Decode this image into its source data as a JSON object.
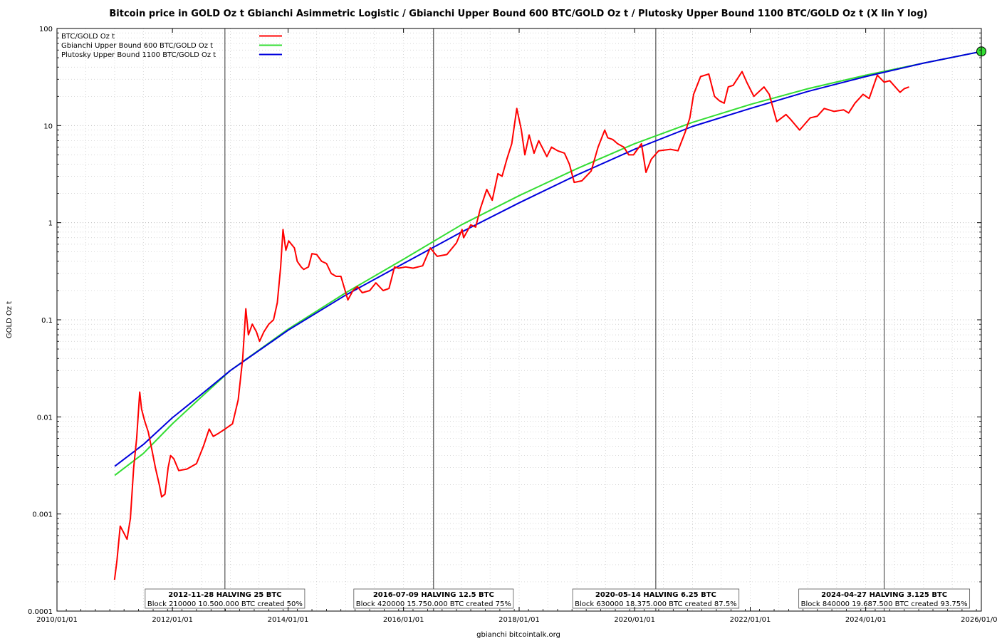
{
  "chart_data": {
    "type": "line",
    "title": "Bitcoin price in GOLD Oz t Gbianchi Asimmetric Logistic / Gbianchi Upper Bound 600  BTC/GOLD Oz t / Plutosky Upper Bound 1100  BTC/GOLD Oz t  (X lin Y log)",
    "xlabel": "gbianchi bitcointalk.org",
    "ylabel": "GOLD Oz t",
    "y_scale": "log",
    "xlim": [
      "2010/01/01",
      "2026/01/01"
    ],
    "ylim": [
      0.0001,
      100
    ],
    "x_ticks": [
      "2010/01/01",
      "2012/01/01",
      "2014/01/01",
      "2016/01/01",
      "2018/01/01",
      "2020/01/01",
      "2022/01/01",
      "2024/01/01",
      "2026/01/01"
    ],
    "y_ticks": [
      "0.0001",
      "0.001",
      "0.01",
      "0.1",
      "1",
      "10",
      "100"
    ],
    "grid": true,
    "legend_position": "top-left",
    "series": [
      {
        "name": "BTC/GOLD Oz t",
        "color": "#ff0000",
        "points": [
          [
            "2010/12/31",
            0.00021
          ],
          [
            "2011/01/15",
            0.00033
          ],
          [
            "2011/02/05",
            0.00075
          ],
          [
            "2011/02/25",
            0.00065
          ],
          [
            "2011/03/20",
            0.00055
          ],
          [
            "2011/04/10",
            0.0009
          ],
          [
            "2011/05/01",
            0.003
          ],
          [
            "2011/05/20",
            0.006
          ],
          [
            "2011/06/08",
            0.018
          ],
          [
            "2011/06/20",
            0.012
          ],
          [
            "2011/07/10",
            0.009
          ],
          [
            "2011/08/01",
            0.007
          ],
          [
            "2011/08/25",
            0.0045
          ],
          [
            "2011/09/15",
            0.003
          ],
          [
            "2011/10/10",
            0.002
          ],
          [
            "2011/10/25",
            0.0015
          ],
          [
            "2011/11/15",
            0.0016
          ],
          [
            "2011/12/05",
            0.003
          ],
          [
            "2011/12/20",
            0.004
          ],
          [
            "2012/01/10",
            0.0037
          ],
          [
            "2012/02/10",
            0.0028
          ],
          [
            "2012/04/01",
            0.0029
          ],
          [
            "2012/06/01",
            0.0033
          ],
          [
            "2012/07/15",
            0.005
          ],
          [
            "2012/08/20",
            0.0075
          ],
          [
            "2012/09/15",
            0.0063
          ],
          [
            "2012/10/20",
            0.0068
          ],
          [
            "2012/11/28",
            0.0075
          ],
          [
            "2013/01/15",
            0.0085
          ],
          [
            "2013/02/20",
            0.015
          ],
          [
            "2013/03/20",
            0.04
          ],
          [
            "2013/04/09",
            0.13
          ],
          [
            "2013/04/25",
            0.07
          ],
          [
            "2013/05/20",
            0.09
          ],
          [
            "2013/06/15",
            0.075
          ],
          [
            "2013/07/05",
            0.06
          ],
          [
            "2013/08/01",
            0.075
          ],
          [
            "2013/09/01",
            0.09
          ],
          [
            "2013/10/01",
            0.1
          ],
          [
            "2013/10/25",
            0.15
          ],
          [
            "2013/11/15",
            0.35
          ],
          [
            "2013/11/30",
            0.85
          ],
          [
            "2013/12/18",
            0.52
          ],
          [
            "2014/01/05",
            0.65
          ],
          [
            "2014/02/10",
            0.55
          ],
          [
            "2014/02/28",
            0.4
          ],
          [
            "2014/03/25",
            0.35
          ],
          [
            "2014/04/10",
            0.33
          ],
          [
            "2014/05/10",
            0.35
          ],
          [
            "2014/06/01",
            0.48
          ],
          [
            "2014/07/01",
            0.47
          ],
          [
            "2014/08/01",
            0.4
          ],
          [
            "2014/09/01",
            0.38
          ],
          [
            "2014/10/01",
            0.3
          ],
          [
            "2014/11/01",
            0.28
          ],
          [
            "2014/12/01",
            0.28
          ],
          [
            "2015/01/14",
            0.16
          ],
          [
            "2015/02/15",
            0.2
          ],
          [
            "2015/03/15",
            0.22
          ],
          [
            "2015/04/15",
            0.19
          ],
          [
            "2015/06/01",
            0.2
          ],
          [
            "2015/07/10",
            0.24
          ],
          [
            "2015/08/25",
            0.2
          ],
          [
            "2015/10/01",
            0.21
          ],
          [
            "2015/11/05",
            0.35
          ],
          [
            "2015/12/01",
            0.34
          ],
          [
            "2016/01/15",
            0.35
          ],
          [
            "2016/03/01",
            0.34
          ],
          [
            "2016/05/01",
            0.36
          ],
          [
            "2016/06/18",
            0.55
          ],
          [
            "2016/07/09",
            0.5
          ],
          [
            "2016/08/01",
            0.45
          ],
          [
            "2016/10/01",
            0.47
          ],
          [
            "2016/12/01",
            0.62
          ],
          [
            "2017/01/05",
            0.85
          ],
          [
            "2017/01/15",
            0.7
          ],
          [
            "2017/03/01",
            0.95
          ],
          [
            "2017/04/01",
            0.9
          ],
          [
            "2017/05/01",
            1.4
          ],
          [
            "2017/06/10",
            2.2
          ],
          [
            "2017/07/15",
            1.7
          ],
          [
            "2017/08/20",
            3.2
          ],
          [
            "2017/09/15",
            3.0
          ],
          [
            "2017/10/15",
            4.5
          ],
          [
            "2017/11/15",
            6.5
          ],
          [
            "2017/12/17",
            15.0
          ],
          [
            "2018/01/15",
            9.0
          ],
          [
            "2018/02/06",
            5.0
          ],
          [
            "2018/03/05",
            8.0
          ],
          [
            "2018/04/05",
            5.2
          ],
          [
            "2018/05/05",
            7.0
          ],
          [
            "2018/06/25",
            4.8
          ],
          [
            "2018/07/25",
            6.0
          ],
          [
            "2018/09/01",
            5.5
          ],
          [
            "2018/10/15",
            5.2
          ],
          [
            "2018/11/15",
            4.0
          ],
          [
            "2018/12/15",
            2.6
          ],
          [
            "2019/02/01",
            2.7
          ],
          [
            "2019/04/01",
            3.4
          ],
          [
            "2019/05/15",
            6.0
          ],
          [
            "2019/06/26",
            9.0
          ],
          [
            "2019/07/15",
            7.5
          ],
          [
            "2019/08/15",
            7.2
          ],
          [
            "2019/09/15",
            6.5
          ],
          [
            "2019/10/25",
            6.0
          ],
          [
            "2019/11/25",
            5.0
          ],
          [
            "2019/12/25",
            5.0
          ],
          [
            "2020/02/13",
            6.5
          ],
          [
            "2020/03/13",
            3.3
          ],
          [
            "2020/04/15",
            4.5
          ],
          [
            "2020/06/01",
            5.5
          ],
          [
            "2020/08/15",
            5.7
          ],
          [
            "2020/10/01",
            5.5
          ],
          [
            "2020/11/15",
            8.5
          ],
          [
            "2020/12/15",
            12.0
          ],
          [
            "2021/01/08",
            21.0
          ],
          [
            "2021/02/21",
            32.0
          ],
          [
            "2021/04/14",
            34.0
          ],
          [
            "2021/05/20",
            20.0
          ],
          [
            "2021/06/20",
            18.0
          ],
          [
            "2021/07/20",
            17.0
          ],
          [
            "2021/08/15",
            25.0
          ],
          [
            "2021/09/15",
            26.0
          ],
          [
            "2021/11/10",
            36.0
          ],
          [
            "2021/12/10",
            28.0
          ],
          [
            "2022/01/24",
            20.0
          ],
          [
            "2022/03/29",
            25.0
          ],
          [
            "2022/05/01",
            21.0
          ],
          [
            "2022/06/18",
            11.0
          ],
          [
            "2022/08/15",
            13.0
          ],
          [
            "2022/09/15",
            11.5
          ],
          [
            "2022/11/09",
            9.0
          ],
          [
            "2023/01/15",
            12.0
          ],
          [
            "2023/03/01",
            12.5
          ],
          [
            "2023/04/14",
            15.0
          ],
          [
            "2023/06/15",
            14.0
          ],
          [
            "2023/08/15",
            14.5
          ],
          [
            "2023/09/15",
            13.5
          ],
          [
            "2023/10/25",
            17.0
          ],
          [
            "2023/12/15",
            21.0
          ],
          [
            "2024/01/23",
            19.0
          ],
          [
            "2024/03/14",
            33.0
          ],
          [
            "2024/04/27",
            28.0
          ],
          [
            "2024/06/01",
            29.0
          ],
          [
            "2024/08/05",
            22.0
          ],
          [
            "2024/09/01",
            24.0
          ],
          [
            "2024/10/01",
            25.0
          ]
        ]
      },
      {
        "name": "Gbianchi Upper Bound 600  BTC/GOLD Oz t",
        "color": "#33dd33",
        "points": [
          [
            "2011/01/01",
            0.0025
          ],
          [
            "2011/07/01",
            0.0042
          ],
          [
            "2012/01/01",
            0.0085
          ],
          [
            "2012/07/01",
            0.016
          ],
          [
            "2013/01/01",
            0.03
          ],
          [
            "2014/01/01",
            0.08
          ],
          [
            "2015/01/01",
            0.19
          ],
          [
            "2016/01/01",
            0.42
          ],
          [
            "2017/01/01",
            0.95
          ],
          [
            "2018/01/01",
            1.9
          ],
          [
            "2019/01/01",
            3.6
          ],
          [
            "2020/01/01",
            6.5
          ],
          [
            "2021/01/01",
            10.8
          ],
          [
            "2022/01/01",
            16.5
          ],
          [
            "2023/01/01",
            24.0
          ],
          [
            "2024/01/01",
            33.0
          ],
          [
            "2025/01/01",
            44.0
          ],
          [
            "2026/01/01",
            58.0
          ]
        ]
      },
      {
        "name": "Plutosky Upper Bound 1100  BTC/GOLD Oz t",
        "color": "#0000dd",
        "points": [
          [
            "2011/01/01",
            0.0031
          ],
          [
            "2011/07/01",
            0.0052
          ],
          [
            "2012/01/01",
            0.0098
          ],
          [
            "2012/07/01",
            0.017
          ],
          [
            "2013/01/01",
            0.03
          ],
          [
            "2014/01/01",
            0.078
          ],
          [
            "2015/01/01",
            0.18
          ],
          [
            "2016/01/01",
            0.38
          ],
          [
            "2017/01/01",
            0.8
          ],
          [
            "2018/01/01",
            1.6
          ],
          [
            "2019/01/01",
            3.1
          ],
          [
            "2020/01/01",
            5.7
          ],
          [
            "2021/01/01",
            9.8
          ],
          [
            "2022/01/01",
            15.0
          ],
          [
            "2023/01/01",
            22.5
          ],
          [
            "2024/01/01",
            32.0
          ],
          [
            "2025/01/01",
            44.0
          ],
          [
            "2026/01/01",
            58.0
          ]
        ]
      }
    ],
    "marker": {
      "x": "2026/01/01",
      "y": 58.0,
      "color": "#33dd33"
    },
    "halvings": [
      {
        "date": "2012/11/28",
        "title": "2012-11-28 HALVING 25 BTC",
        "subtitle": "Block 210000 10.500.000 BTC created 50%"
      },
      {
        "date": "2016/07/09",
        "title": "2016-07-09 HALVING 12.5 BTC",
        "subtitle": "Block 420000 15.750.000 BTC created 75%"
      },
      {
        "date": "2020/05/14",
        "title": "2020-05-14 HALVING 6.25 BTC",
        "subtitle": "Block 630000 18.375.000 BTC created 87.5%"
      },
      {
        "date": "2024/04/27",
        "title": "2024-04-27 HALVING 3.125 BTC",
        "subtitle": "Block 840000 19.687.500 BTC created 93.75%"
      }
    ]
  }
}
